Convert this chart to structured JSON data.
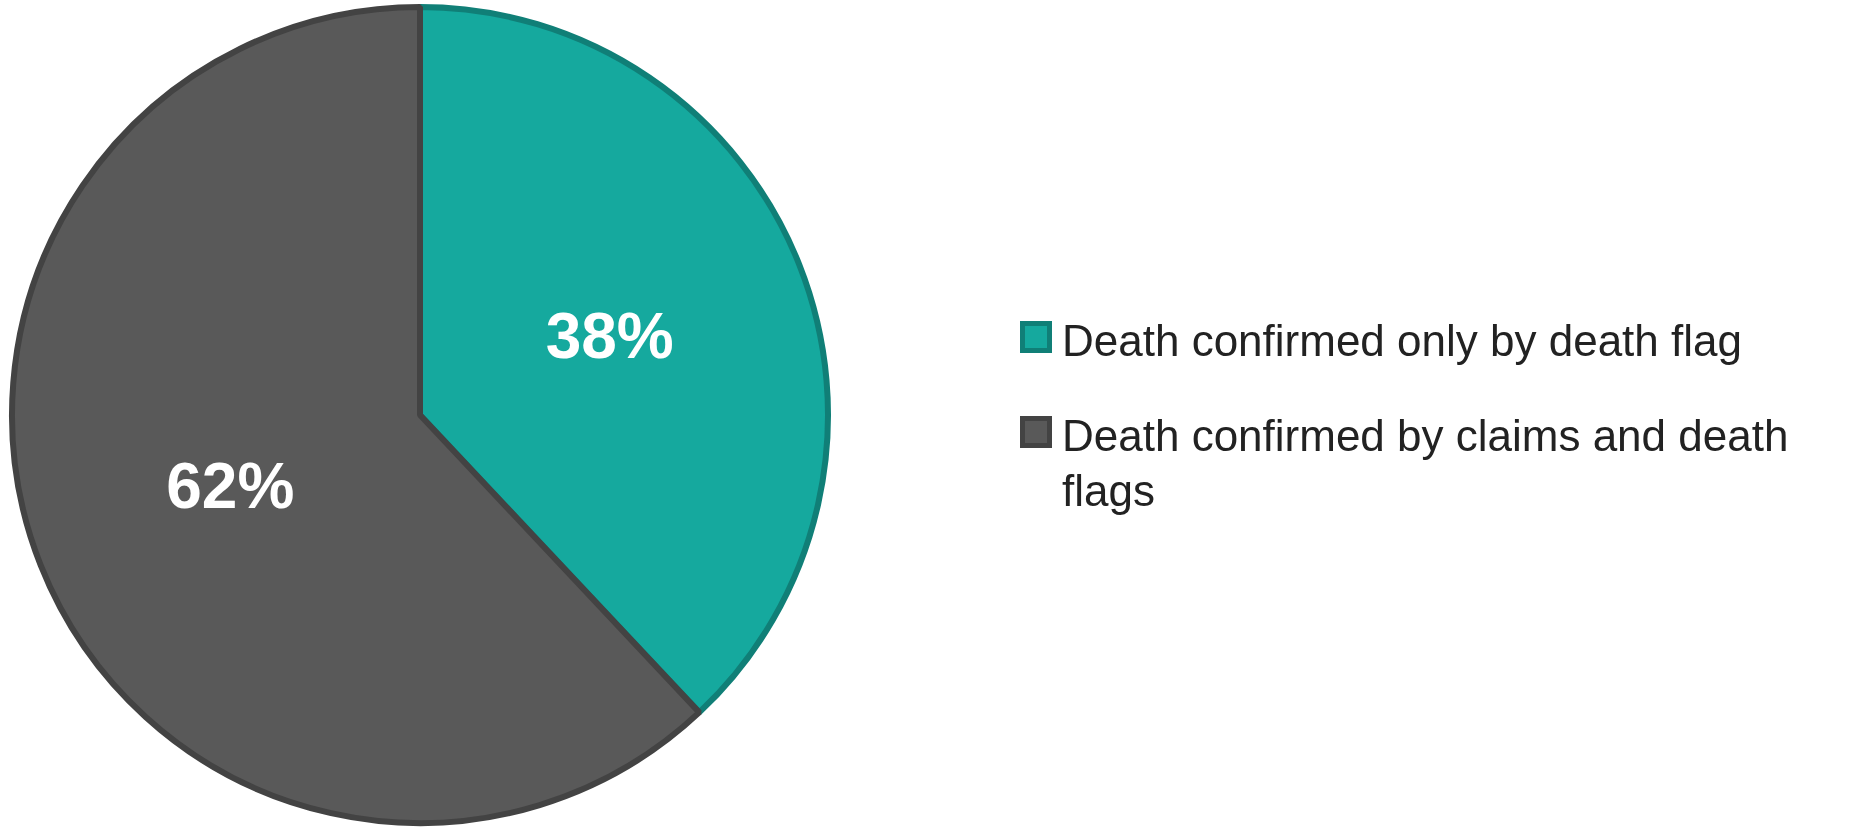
{
  "chart_data": {
    "type": "pie",
    "categories": [
      "Death confirmed only by death flag",
      "Death confirmed by claims and death flags"
    ],
    "values": [
      38,
      62
    ],
    "colors": [
      "#15a99e",
      "#595959"
    ],
    "value_labels": [
      "38%",
      "62%"
    ],
    "legend": "right"
  }
}
